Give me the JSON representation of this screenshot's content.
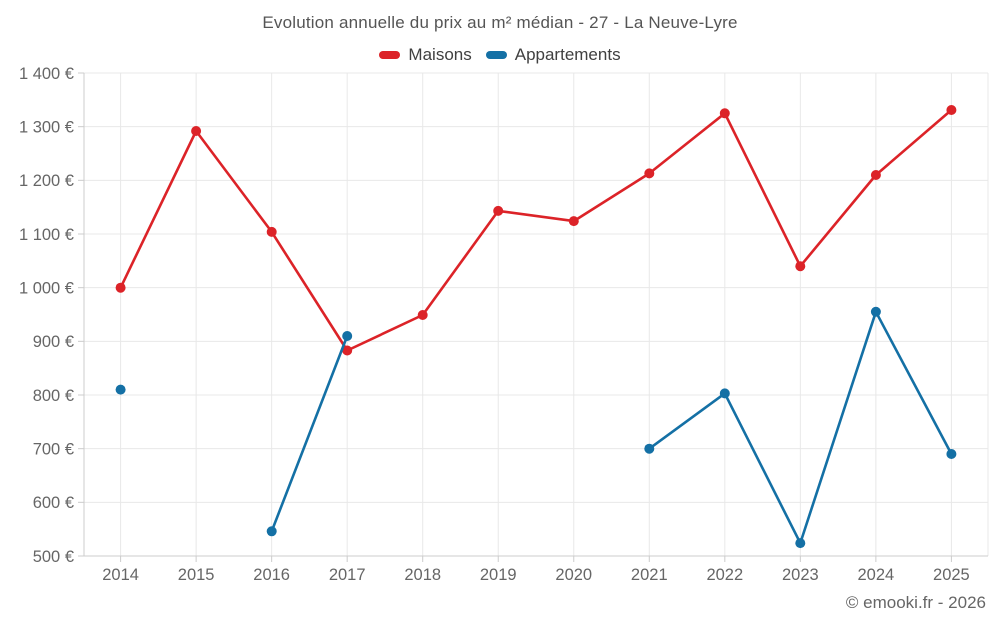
{
  "header": {
    "title": "Evolution annuelle du prix au m² médian - 27 - La Neuve-Lyre"
  },
  "legend": [
    {
      "label": "Maisons",
      "color": "#dc2328"
    },
    {
      "label": "Appartements",
      "color": "#1470a5"
    }
  ],
  "footer": {
    "attribution": "© emooki.fr - 2026"
  },
  "colors": {
    "maisons": "#dc2328",
    "appartements": "#1470a5",
    "gridline": "#e8e8e8",
    "axis": "#cccccc",
    "tick_label": "#666666"
  },
  "chart_data": {
    "type": "line",
    "title": "Evolution annuelle du prix au m² médian - 27 - La Neuve-Lyre",
    "x": [
      "2014",
      "2015",
      "2016",
      "2017",
      "2018",
      "2019",
      "2020",
      "2021",
      "2022",
      "2023",
      "2024",
      "2025"
    ],
    "series": [
      {
        "name": "Maisons",
        "color": "#dc2328",
        "values": [
          1000,
          1292,
          1104,
          883,
          949,
          1143,
          1124,
          1213,
          1325,
          1040,
          1210,
          1331
        ]
      },
      {
        "name": "Appartements",
        "color": "#1470a5",
        "values": [
          810,
          null,
          546,
          910,
          null,
          null,
          null,
          700,
          803,
          524,
          955,
          690
        ]
      }
    ],
    "xlabel": "",
    "ylabel": "",
    "ylim": [
      500,
      1400
    ],
    "ytick_step": 100,
    "ytick_labels": [
      "500 €",
      "600 €",
      "700 €",
      "800 €",
      "900 €",
      "1 000 €",
      "1 100 €",
      "1 200 €",
      "1 300 €",
      "1 400 €"
    ],
    "grid": true,
    "legend_position": "top",
    "currency": "€"
  }
}
